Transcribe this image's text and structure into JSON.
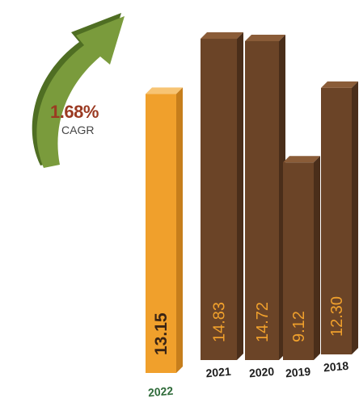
{
  "cagr": {
    "value": "1.68%",
    "label": "CAGR"
  },
  "colors": {
    "highlight_front": "#f0a02c",
    "highlight_side": "#c67e1c",
    "highlight_top": "#f7c474",
    "bar_front": "#6b4427",
    "bar_side": "#4a2e1a",
    "bar_top": "#8a5c38",
    "year_label": "#1e1e1e",
    "highlight_year_label": "#2f6b3a",
    "arrow": "#7a9b3c",
    "arrow_dark": "#4f6e23"
  },
  "chart_data": {
    "type": "bar",
    "title": "",
    "xlabel": "",
    "ylabel": "",
    "categories": [
      "2022",
      "2021",
      "2020",
      "2019",
      "2018"
    ],
    "values": [
      13.15,
      14.83,
      14.72,
      9.12,
      12.3
    ],
    "value_labels": [
      "13.15",
      "14.83",
      "14.72",
      "9.12",
      "12.30"
    ],
    "highlight": "2022",
    "ylim": [
      0,
      15
    ],
    "grid": false,
    "legend": "none"
  }
}
